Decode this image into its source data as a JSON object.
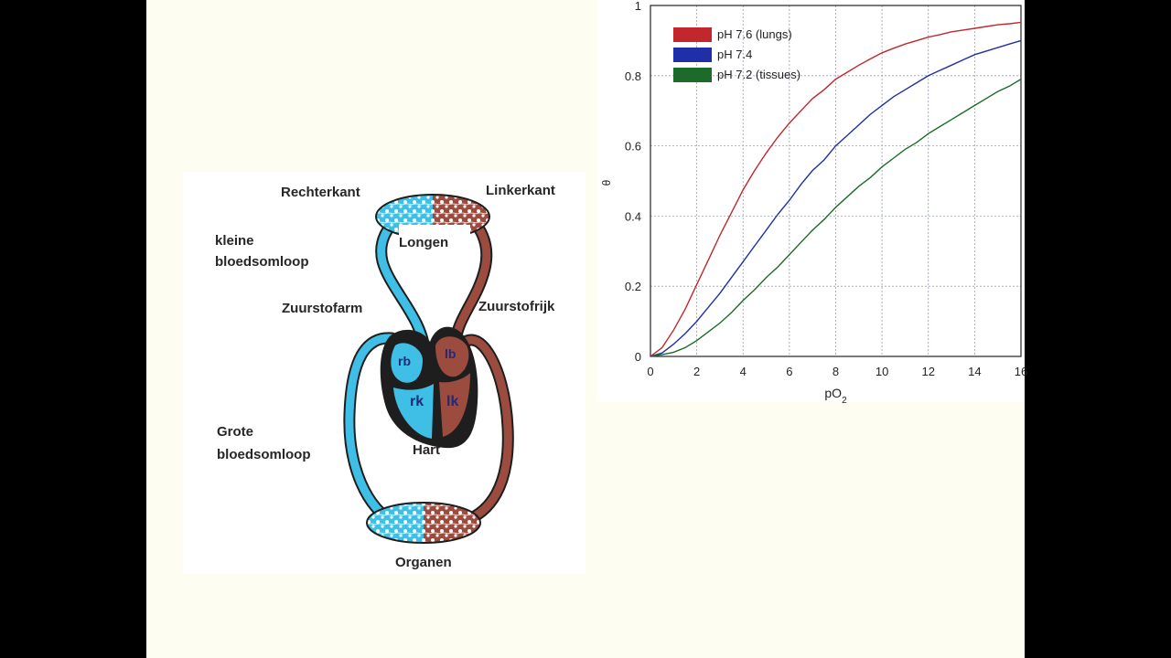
{
  "diagram": {
    "labels": {
      "rechterkant": "Rechterkant",
      "linkerkant": "Linkerkant",
      "kleine_line1": "kleine",
      "kleine_line2": "bloedsomloop",
      "longen": "Longen",
      "zuurstofarm": "Zuurstofarm",
      "zuurstofrijk": "Zuurstofrijk",
      "grote_line1": "Grote",
      "grote_line2": "bloedsomloop",
      "hart": "Hart",
      "organen": "Organen",
      "rb": "rb",
      "rk": "rk",
      "lb": "lb",
      "lk": "lk"
    },
    "colors": {
      "oxygen_poor": "#3fbfe6",
      "oxygen_rich": "#9b4c3f",
      "outline": "#1e1e1e",
      "capillary": "#ffffff"
    }
  },
  "chart_data": {
    "type": "line",
    "title": "",
    "xlabel": "pO2",
    "ylabel": "θ",
    "xlim": [
      0,
      16
    ],
    "ylim": [
      0,
      1
    ],
    "xticks": [
      "0",
      "2",
      "4",
      "6",
      "8",
      "10",
      "12",
      "14",
      "16"
    ],
    "yticks": [
      "0",
      "0.2",
      "0.4",
      "0.6",
      "0.8",
      "1"
    ],
    "grid": true,
    "legend": "top-left",
    "x": [
      0,
      0.5,
      1,
      1.5,
      2,
      2.5,
      3,
      3.5,
      4,
      4.5,
      5,
      5.5,
      6,
      6.5,
      7,
      7.5,
      8,
      8.5,
      9,
      9.5,
      10,
      10.5,
      11,
      11.5,
      12,
      12.5,
      13,
      13.5,
      14,
      14.5,
      15,
      15.5,
      16
    ],
    "series": [
      {
        "name": "pH 7.6 (lungs)",
        "color": "#c0282d",
        "values": [
          0,
          0.025,
          0.075,
          0.135,
          0.205,
          0.275,
          0.345,
          0.41,
          0.475,
          0.53,
          0.58,
          0.625,
          0.665,
          0.7,
          0.735,
          0.76,
          0.79,
          0.81,
          0.83,
          0.848,
          0.865,
          0.878,
          0.89,
          0.9,
          0.91,
          0.917,
          0.925,
          0.93,
          0.935,
          0.94,
          0.945,
          0.948,
          0.952
        ]
      },
      {
        "name": "pH 7.4",
        "color": "#1f2fa8",
        "values": [
          0,
          0.01,
          0.035,
          0.065,
          0.1,
          0.14,
          0.18,
          0.225,
          0.27,
          0.315,
          0.36,
          0.405,
          0.445,
          0.49,
          0.53,
          0.56,
          0.6,
          0.63,
          0.66,
          0.69,
          0.715,
          0.74,
          0.76,
          0.78,
          0.8,
          0.815,
          0.83,
          0.845,
          0.86,
          0.87,
          0.88,
          0.89,
          0.9
        ]
      },
      {
        "name": "pH 7.2 (tissues)",
        "color": "#1d6b2a",
        "values": [
          0,
          0.005,
          0.012,
          0.025,
          0.045,
          0.07,
          0.095,
          0.125,
          0.16,
          0.19,
          0.225,
          0.255,
          0.29,
          0.325,
          0.36,
          0.39,
          0.425,
          0.455,
          0.485,
          0.51,
          0.54,
          0.565,
          0.59,
          0.61,
          0.635,
          0.655,
          0.675,
          0.695,
          0.715,
          0.735,
          0.755,
          0.77,
          0.79
        ]
      }
    ]
  }
}
